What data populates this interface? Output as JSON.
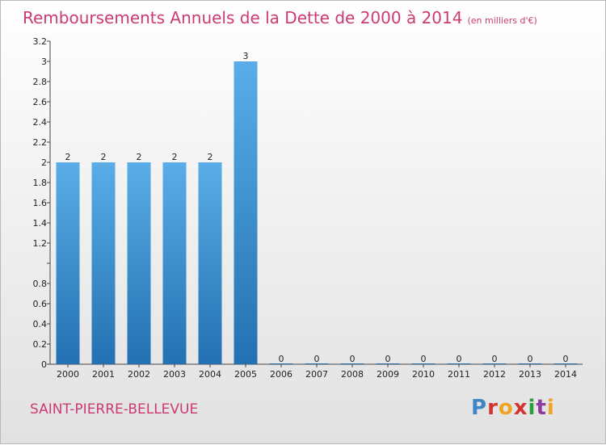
{
  "header": {
    "title": "Remboursements Annuels de la Dette de 2000 à 2014",
    "unit": "(en milliers d'€)"
  },
  "footer": {
    "commune": "SAINT-PIERRE-BELLEVUE",
    "logo": [
      "P",
      "r",
      "o",
      "x",
      "i",
      "t",
      "i"
    ]
  },
  "colors": {
    "title": "#cc3a73",
    "bar_top": "#5aade8",
    "bar_bottom": "#2371b2"
  },
  "chart_data": {
    "type": "bar",
    "title": "Remboursements Annuels de la Dette de 2000 à 2014",
    "xlabel": "",
    "ylabel": "",
    "categories": [
      "2000",
      "2001",
      "2002",
      "2003",
      "2004",
      "2005",
      "2006",
      "2007",
      "2008",
      "2009",
      "2010",
      "2011",
      "2012",
      "2013",
      "2014"
    ],
    "values": [
      2,
      2,
      2,
      2,
      2,
      3,
      0,
      0,
      0,
      0,
      0,
      0,
      0,
      0,
      0
    ],
    "data_labels": [
      "2",
      "2",
      "2",
      "2",
      "2",
      "3",
      "0",
      "0",
      "0",
      "0",
      "0",
      "0",
      "0",
      "0",
      "0"
    ],
    "ylim": [
      0,
      3.2
    ],
    "y_ticks": [
      0,
      0.2,
      0.4,
      0.6,
      0.8,
      1,
      1.2,
      1.4,
      1.6,
      1.8,
      2,
      2.2,
      2.4,
      2.6,
      2.8,
      3,
      3.2
    ],
    "y_tick_labels": [
      "0",
      "0.2",
      "0.4",
      "0.6",
      "0.8",
      "",
      "1.2",
      "1.4",
      "1.6",
      "1.8",
      "2",
      "2.2",
      "2.4",
      "2.6",
      "2.8",
      "3",
      "3.2"
    ],
    "grid": false,
    "legend": "none"
  }
}
